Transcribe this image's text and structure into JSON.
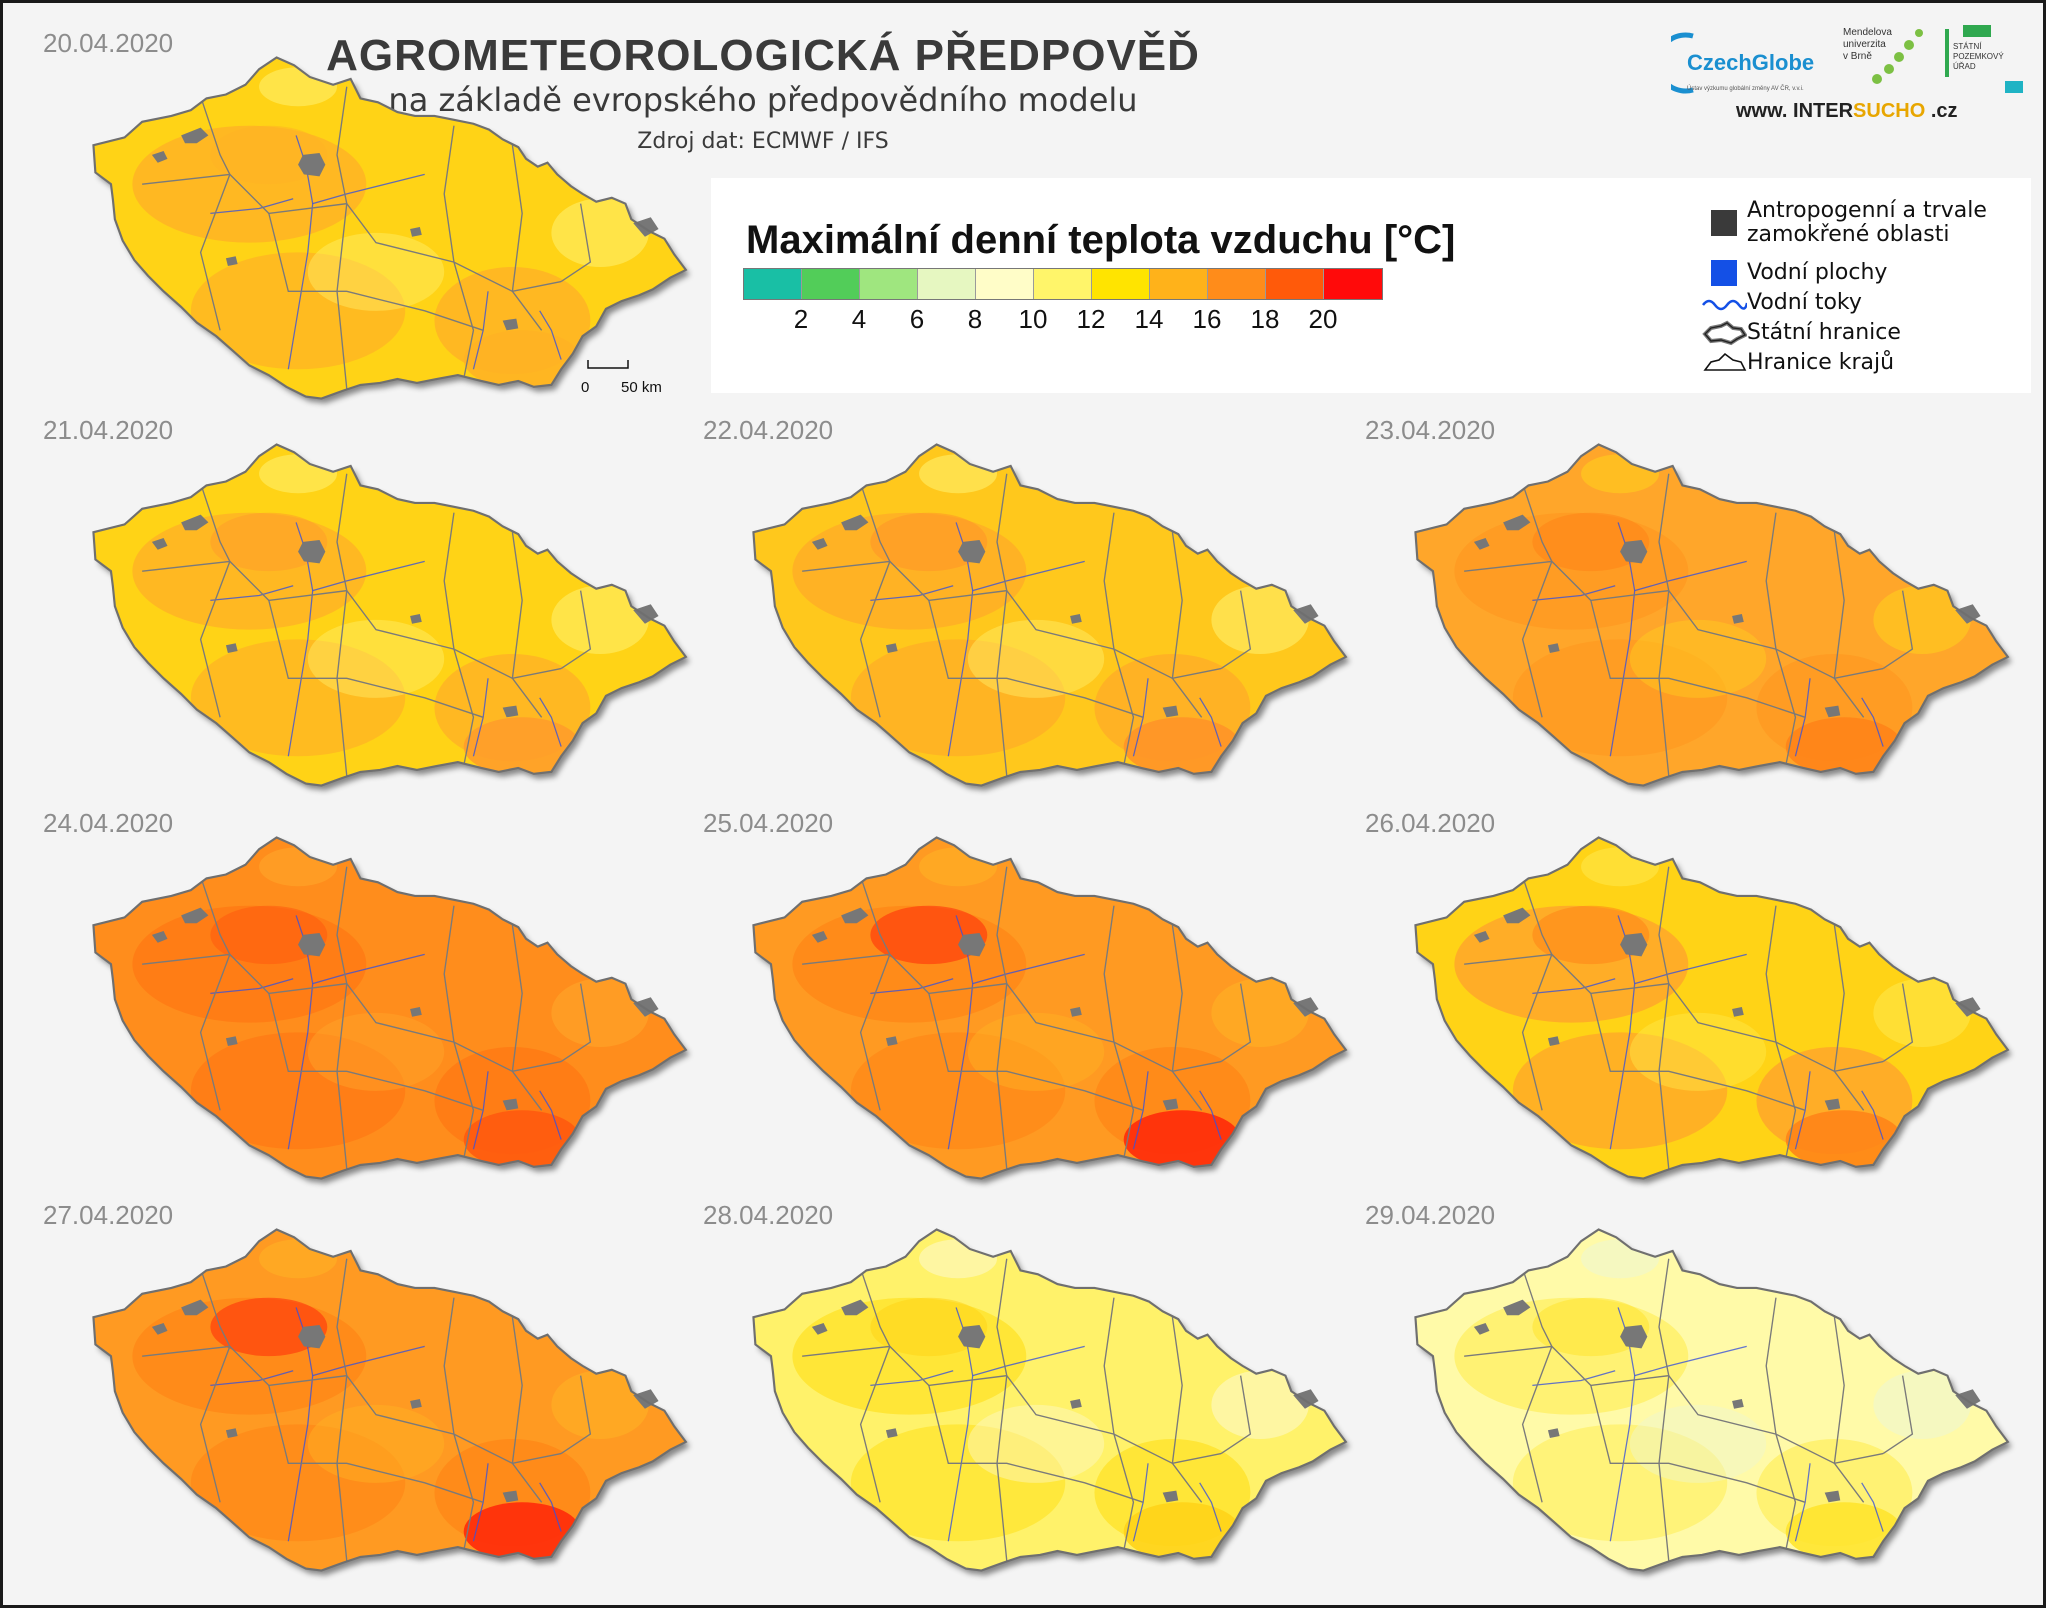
{
  "header": {
    "title": "AGROMETEOROLOGICKÁ  PŘEDPOVĚĎ",
    "subtitle": "na základě evropského předpovědního modelu",
    "source": "Zdroj dat: ECMWF / IFS"
  },
  "logos": {
    "czechglobe": "CzechGlobe",
    "czechglobe_tagline": "Ústav výzkumu globální změny AV ČR, v.v.i.",
    "mendel_line1": "Mendelova",
    "mendel_line2": "univerzita",
    "mendel_line3": "v Brně",
    "spu_line1": "STÁTNÍ",
    "spu_line2": "POZEMKOVÝ",
    "spu_line3": "ÚŘAD",
    "website_prefix": "www. INTER",
    "website_highlight": "SUCHO",
    "website_suffix": " .cz"
  },
  "legend": {
    "title": "Maximální denní teplota vzduchu [°C]",
    "colors": [
      "#19bfa5",
      "#52cd59",
      "#9fe67f",
      "#e6f7c1",
      "#fffdc8",
      "#fff56a",
      "#ffe400",
      "#ffb21a",
      "#ff8c1a",
      "#ff5a0a",
      "#ff0a0a"
    ],
    "ticks": [
      "2",
      "4",
      "6",
      "8",
      "10",
      "12",
      "14",
      "16",
      "18",
      "20"
    ],
    "items": [
      {
        "label_line1": "Antropogenní a trvale",
        "label_line2": "zamokřené oblasti"
      },
      {
        "label_line1": "Vodní plochy"
      },
      {
        "label_line1": "Vodní toky"
      },
      {
        "label_line1": "Státní hranice"
      },
      {
        "label_line1": "Hranice krajů"
      }
    ],
    "scalebar": {
      "start": "0",
      "end": "50 km"
    }
  },
  "maps": [
    {
      "date": "20.04.2020",
      "base": "#ffd318",
      "warm": "#ffb324",
      "hot": "#ffb324",
      "cool": "#fff06a"
    },
    {
      "date": "21.04.2020",
      "base": "#ffd318",
      "warm": "#ffb324",
      "hot": "#ff9d2a",
      "cool": "#fff06a"
    },
    {
      "date": "22.04.2020",
      "base": "#ffc81e",
      "warm": "#ffae26",
      "hot": "#ff9428",
      "cool": "#fff06a"
    },
    {
      "date": "23.04.2020",
      "base": "#ffa62a",
      "warm": "#ff9a22",
      "hot": "#ff8418",
      "cool": "#ffcf1e"
    },
    {
      "date": "24.04.2020",
      "base": "#ff8d1c",
      "warm": "#ff7a14",
      "hot": "#ff5a0e",
      "cool": "#ffa62a"
    },
    {
      "date": "25.04.2020",
      "base": "#ff9a22",
      "warm": "#ff8818",
      "hot": "#ff2a0a",
      "cool": "#ffb324"
    },
    {
      "date": "26.04.2020",
      "base": "#ffd318",
      "warm": "#ffa62a",
      "hot": "#ff8418",
      "cool": "#ffe84a"
    },
    {
      "date": "27.04.2020",
      "base": "#ff9a22",
      "warm": "#ff8818",
      "hot": "#ff2a0a",
      "cool": "#ffb324"
    },
    {
      "date": "28.04.2020",
      "base": "#fff26a",
      "warm": "#ffe42e",
      "hot": "#ffd318",
      "cool": "#fdf9c8"
    },
    {
      "date": "29.04.2020",
      "base": "#fffaa8",
      "warm": "#fff06a",
      "hot": "#ffe42e",
      "cool": "#eef7d0"
    }
  ]
}
